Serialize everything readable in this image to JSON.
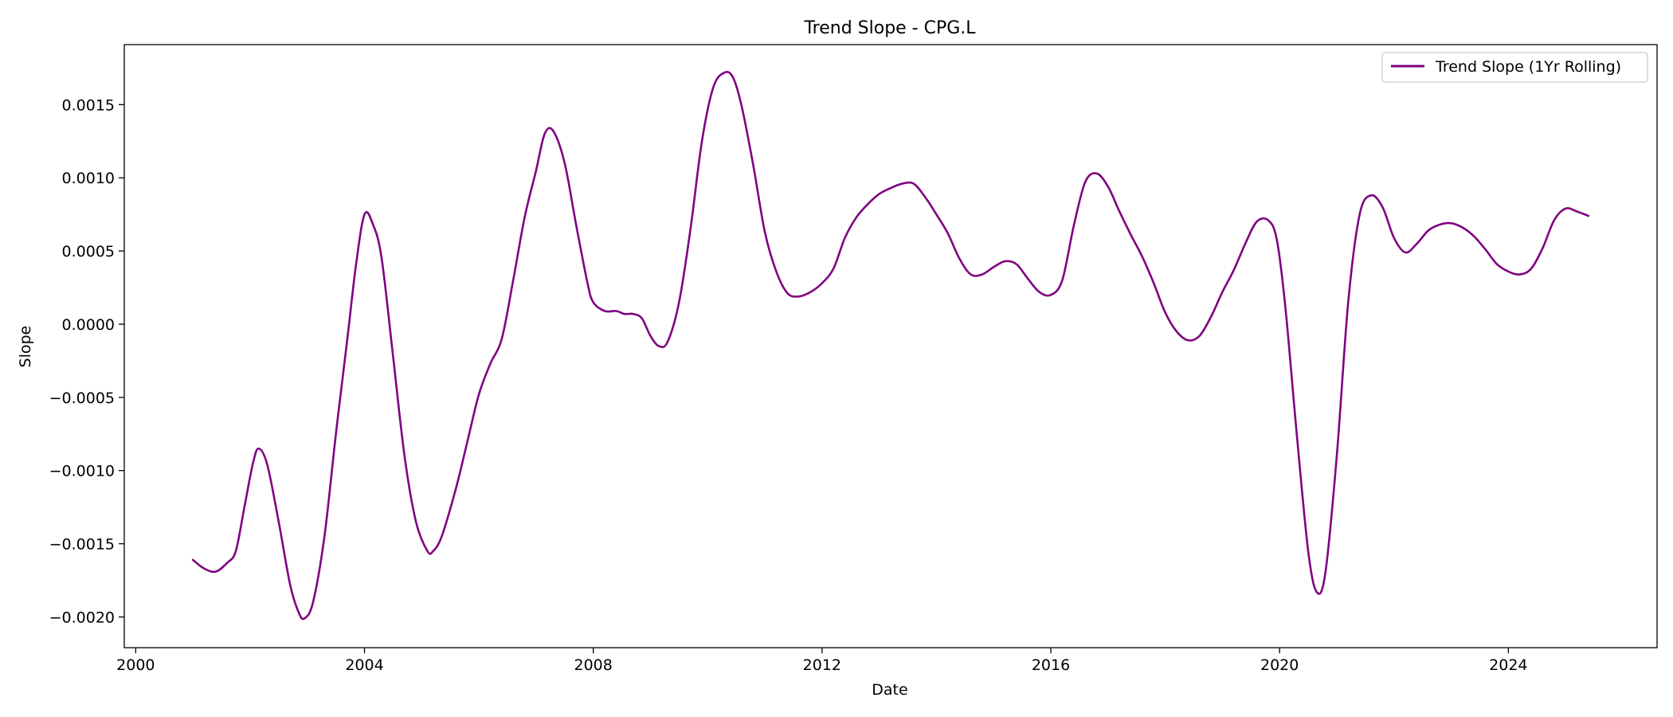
{
  "chart_data": {
    "type": "line",
    "title": "Trend Slope - CPG.L",
    "xlabel": "Date",
    "ylabel": "Slope",
    "xlim": [
      1999.8,
      2026.6
    ],
    "ylim": [
      -0.00221,
      0.00191
    ],
    "xticks": [
      2000,
      2004,
      2008,
      2012,
      2016,
      2020,
      2024
    ],
    "xtick_labels": [
      "2000",
      "2004",
      "2008",
      "2012",
      "2016",
      "2020",
      "2024"
    ],
    "yticks": [
      0.0015,
      0.001,
      0.0005,
      0.0,
      -0.0005,
      -0.001,
      -0.0015,
      -0.002
    ],
    "ytick_labels": [
      "0.0015",
      "0.0010",
      "0.0005",
      "0.0000",
      "−0.0005",
      "−0.0010",
      "−0.0015",
      "−0.0020"
    ],
    "grid": false,
    "legend": {
      "position": "top-right"
    },
    "series": [
      {
        "name": "Trend Slope (1Yr Rolling)",
        "color": "#800080",
        "x": [
          2001.0,
          2001.2,
          2001.4,
          2001.6,
          2001.75,
          2001.9,
          2002.05,
          2002.15,
          2002.3,
          2002.5,
          2002.7,
          2002.85,
          2002.95,
          2003.1,
          2003.3,
          2003.5,
          2003.7,
          2003.85,
          2004.0,
          2004.15,
          2004.3,
          2004.5,
          2004.7,
          2004.9,
          2005.1,
          2005.2,
          2005.35,
          2005.6,
          2005.8,
          2006.0,
          2006.2,
          2006.4,
          2006.6,
          2006.8,
          2007.0,
          2007.15,
          2007.3,
          2007.5,
          2007.7,
          2007.9,
          2008.0,
          2008.2,
          2008.4,
          2008.55,
          2008.7,
          2008.85,
          2009.0,
          2009.15,
          2009.3,
          2009.5,
          2009.7,
          2009.9,
          2010.1,
          2010.3,
          2010.45,
          2010.6,
          2010.8,
          2011.0,
          2011.2,
          2011.4,
          2011.6,
          2011.8,
          2012.0,
          2012.2,
          2012.4,
          2012.6,
          2012.8,
          2013.0,
          2013.2,
          2013.4,
          2013.6,
          2013.8,
          2014.0,
          2014.2,
          2014.4,
          2014.6,
          2014.8,
          2015.0,
          2015.2,
          2015.4,
          2015.6,
          2015.8,
          2016.0,
          2016.2,
          2016.4,
          2016.6,
          2016.8,
          2017.0,
          2017.2,
          2017.4,
          2017.6,
          2017.8,
          2018.0,
          2018.2,
          2018.4,
          2018.6,
          2018.8,
          2019.0,
          2019.2,
          2019.4,
          2019.6,
          2019.8,
          2019.95,
          2020.1,
          2020.3,
          2020.5,
          2020.65,
          2020.8,
          2021.0,
          2021.2,
          2021.4,
          2021.6,
          2021.8,
          2022.0,
          2022.2,
          2022.4,
          2022.6,
          2022.8,
          2023.0,
          2023.2,
          2023.4,
          2023.6,
          2023.8,
          2024.0,
          2024.2,
          2024.4,
          2024.6,
          2024.8,
          2025.0,
          2025.2,
          2025.4
        ],
        "y": [
          -0.00161,
          -0.00167,
          -0.00169,
          -0.00163,
          -0.00155,
          -0.00125,
          -0.00095,
          -0.00085,
          -0.00096,
          -0.00135,
          -0.00178,
          -0.00197,
          -0.00201,
          -0.0019,
          -0.00145,
          -0.00075,
          -0.0001,
          0.0004,
          0.00075,
          0.00068,
          0.00045,
          -0.00022,
          -0.0009,
          -0.00135,
          -0.00155,
          -0.00155,
          -0.00145,
          -0.00112,
          -0.0008,
          -0.00048,
          -0.00027,
          -0.0001,
          0.0003,
          0.00073,
          0.00105,
          0.0013,
          0.00132,
          0.0011,
          0.00068,
          0.00028,
          0.00015,
          9e-05,
          9e-05,
          7e-05,
          7e-05,
          4e-05,
          -8e-05,
          -0.00015,
          -0.00012,
          0.00015,
          0.00065,
          0.00125,
          0.00162,
          0.00172,
          0.00168,
          0.00148,
          0.00108,
          0.00063,
          0.00036,
          0.00021,
          0.00019,
          0.00022,
          0.00028,
          0.00038,
          0.00059,
          0.00073,
          0.00082,
          0.00089,
          0.00093,
          0.00096,
          0.00096,
          0.00087,
          0.00075,
          0.00062,
          0.00045,
          0.00034,
          0.00034,
          0.00039,
          0.00043,
          0.00041,
          0.00031,
          0.00022,
          0.0002,
          0.0003,
          0.00067,
          0.00097,
          0.00103,
          0.00094,
          0.00077,
          0.00061,
          0.00046,
          0.00028,
          8e-05,
          -5e-05,
          -0.00011,
          -8e-05,
          5e-05,
          0.00022,
          0.00037,
          0.00055,
          0.0007,
          0.00071,
          0.00058,
          0.00012,
          -0.00075,
          -0.00155,
          -0.00183,
          -0.0017,
          -0.0009,
          0.00015,
          0.00075,
          0.00088,
          0.0008,
          0.00059,
          0.00049,
          0.00055,
          0.00064,
          0.00068,
          0.00069,
          0.00066,
          0.0006,
          0.00051,
          0.00041,
          0.00036,
          0.00034,
          0.00038,
          0.00052,
          0.00071,
          0.00079,
          0.00077,
          0.00074
        ]
      }
    ]
  }
}
